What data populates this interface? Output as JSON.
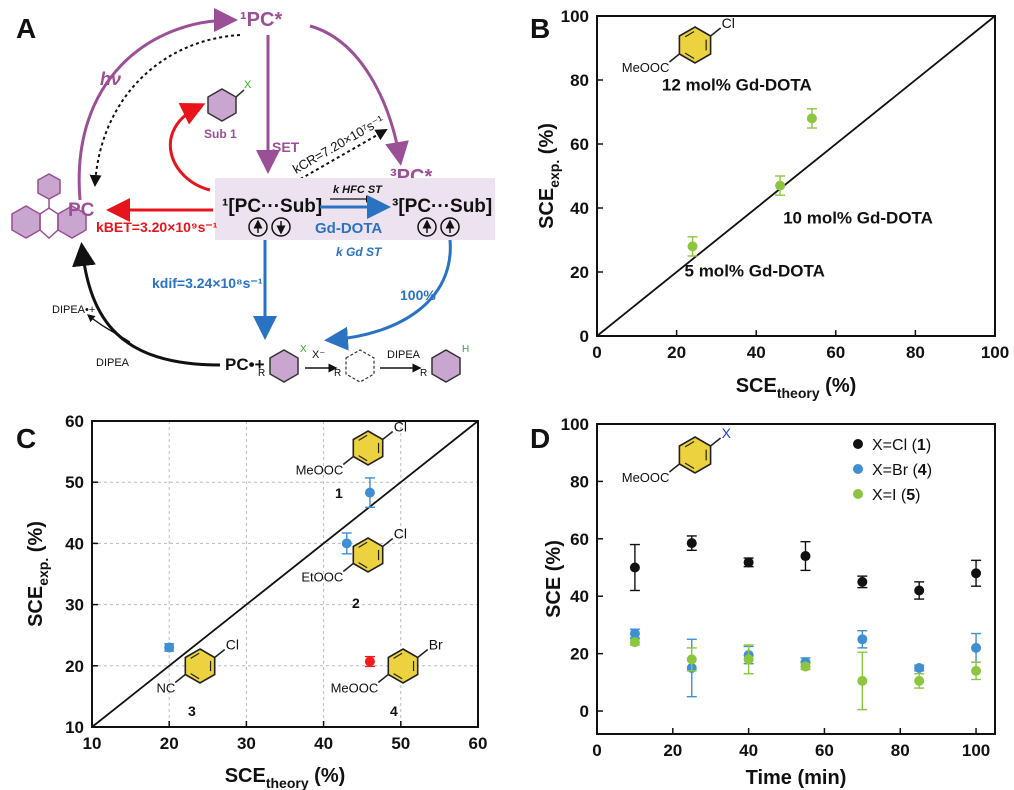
{
  "colors": {
    "purple": "#9B4F96",
    "red": "#E8141B",
    "blue": "#2A73C2",
    "green": "#8DC63F",
    "black": "#111111",
    "pcBox": "#EDE3F0",
    "ring": "#EDD23F",
    "ptBlue": "#3F8FD2",
    "ptGreen": "#8CC63F",
    "ptRed": "#F01C1C"
  },
  "panelA": {
    "letter": "A",
    "pc_star_singlet": "¹PC*",
    "pc_star_triplet": "³PC*",
    "pc": "PC",
    "hv": "hν",
    "sub1_label": "Sub 1",
    "sub_R": "R",
    "sub_X": "X",
    "set": "SET",
    "kcr": "kCR=7.20×10⁷s⁻¹",
    "k_bet": "kBET=3.20×10⁹s⁻¹",
    "k_dif": "kdif=3.24×10⁸s⁻¹",
    "singlet_rp": "¹[PC···Sub]",
    "triplet_rp": "³[PC···Sub]",
    "k_st_hfc": "k HFC ST",
    "gd_dota": "Gd-DOTA",
    "k_st_gd": "k Gd ST",
    "percent100": "100%",
    "dipea_rad": "DIPEA•+",
    "dipea": "DIPEA",
    "dipea2": "DIPEA",
    "pc_rad": "PC•+",
    "x_minus": "X⁻",
    "h": "H"
  },
  "chart_data": [
    {
      "panel": "B",
      "type": "scatter",
      "xlabel": "SCEtheory (%)",
      "ylabel": "SCEexp. (%)",
      "xlim": [
        0,
        100
      ],
      "ylim": [
        0,
        100
      ],
      "xticks": [
        0,
        20,
        40,
        60,
        80,
        100
      ],
      "yticks": [
        0,
        20,
        40,
        60,
        80,
        100
      ],
      "grid": false,
      "diagonal": true,
      "points": [
        {
          "x": 24,
          "y": 28,
          "err": 3,
          "label": "5 mol% Gd-DOTA"
        },
        {
          "x": 46,
          "y": 47,
          "err": 3,
          "label": "10 mol% Gd-DOTA"
        },
        {
          "x": 54,
          "y": 68,
          "err": 3,
          "label": "12 mol% Gd-DOTA"
        }
      ],
      "substituent": "Cl",
      "ester": "MeOOC"
    },
    {
      "panel": "C",
      "type": "scatter",
      "xlabel": "SCEtheory (%)",
      "ylabel": "SCEexp. (%)",
      "xlim": [
        10,
        60
      ],
      "ylim": [
        10,
        60
      ],
      "xticks": [
        10,
        20,
        30,
        40,
        50,
        60
      ],
      "yticks": [
        10,
        20,
        30,
        40,
        50,
        60
      ],
      "grid": true,
      "diagonal": true,
      "points": [
        {
          "x": 46,
          "y": 48.3,
          "err": 2.4,
          "label": "1",
          "color": "blue"
        },
        {
          "x": 43,
          "y": 40,
          "err": 1.7,
          "label": "2",
          "color": "blue"
        },
        {
          "x": 20,
          "y": 23,
          "err": 0.6,
          "label": "3",
          "color": "blue"
        },
        {
          "x": 46,
          "y": 20.7,
          "err": 0.8,
          "label": "4",
          "color": "red"
        }
      ],
      "struct1": {
        "sub": "Cl",
        "ester": "MeOOC",
        "num": "1"
      },
      "struct2": {
        "sub": "Cl",
        "ester": "EtOOC",
        "num": "2"
      },
      "struct3": {
        "sub": "Cl",
        "ester": "NC",
        "num": "3"
      },
      "struct4": {
        "sub": "Br",
        "ester": "MeOOC",
        "num": "4"
      }
    },
    {
      "panel": "D",
      "type": "scatter",
      "xlabel": "Time (min)",
      "ylabel": "SCE (%)",
      "xlim": [
        0,
        105
      ],
      "ylim": [
        -8,
        100
      ],
      "xticks": [
        0,
        20,
        40,
        60,
        80,
        100
      ],
      "yticks": [
        0,
        20,
        40,
        60,
        80,
        100
      ],
      "grid": false,
      "legend_position": "top-right",
      "struct": {
        "sub": "X",
        "ester": "MeOOC"
      },
      "series": [
        {
          "name": "X=Cl (1)",
          "color": "black",
          "x": [
            10,
            25,
            40,
            55,
            70,
            85,
            100
          ],
          "y": [
            50,
            58.5,
            51.8,
            54,
            45,
            42,
            48
          ],
          "err": [
            8,
            2.5,
            1.5,
            5,
            2,
            3,
            4.5
          ]
        },
        {
          "name": "X=Br (4)",
          "color": "blue",
          "x": [
            10,
            25,
            40,
            55,
            70,
            85,
            100
          ],
          "y": [
            27,
            15,
            19.5,
            17,
            25,
            15,
            22
          ],
          "err": [
            1.5,
            10,
            3,
            1.5,
            3,
            1,
            5
          ]
        },
        {
          "name": "X=I (5)",
          "color": "green",
          "x": [
            10,
            25,
            40,
            55,
            70,
            85,
            100
          ],
          "y": [
            24,
            18,
            18,
            15.5,
            10.5,
            10.5,
            14
          ],
          "err": [
            1,
            4,
            5,
            1,
            10,
            2.5,
            3
          ]
        }
      ]
    }
  ]
}
